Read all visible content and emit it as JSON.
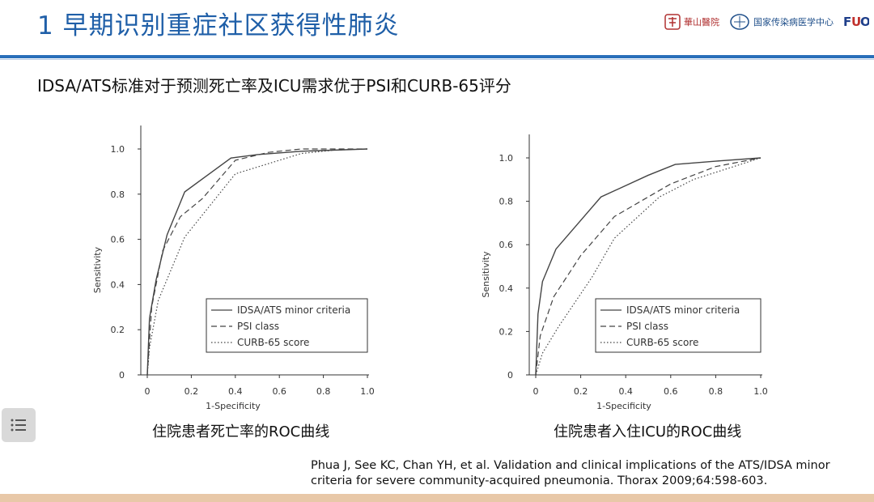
{
  "header": {
    "title": "1 早期识别重症社区获得性肺炎",
    "logos": [
      {
        "name": "huashan-hospital-logo",
        "text": "華山醫院"
      },
      {
        "name": "national-center-logo",
        "text": "国家传染病医学中心"
      },
      {
        "name": "fuo-logo",
        "text": "FUO"
      }
    ]
  },
  "subtitle": "IDSA/ATS标准对于预测死亡率及ICU需求优于PSI和CURB-65评分",
  "colors": {
    "title": "#1f5fa8",
    "rule": "#2a6fba",
    "line": "#444444"
  },
  "chart_data": [
    {
      "type": "line",
      "caption": "住院患者死亡率的ROC曲线",
      "xlabel": "1-Specificity",
      "ylabel": "Sensitivity",
      "xlim": [
        0,
        1
      ],
      "ylim": [
        0,
        1.1
      ],
      "xticks": [
        "0",
        "0.2",
        "0.4",
        "0.6",
        "0.8",
        "1.0"
      ],
      "yticks": [
        "0",
        "0.2",
        "0.4",
        "0.6",
        "0.8",
        "1.0"
      ],
      "legend_position": "bottom-right",
      "series": [
        {
          "name": "IDSA/ATS minor criteria",
          "style": "solid",
          "x": [
            0,
            0.01,
            0.04,
            0.09,
            0.17,
            0.38,
            0.5,
            0.7,
            1.0
          ],
          "y": [
            0,
            0.25,
            0.42,
            0.62,
            0.81,
            0.96,
            0.975,
            0.99,
            1.0
          ]
        },
        {
          "name": "PSI class",
          "style": "dashed",
          "x": [
            0,
            0.02,
            0.07,
            0.15,
            0.25,
            0.4,
            0.55,
            0.7,
            1.0
          ],
          "y": [
            0,
            0.3,
            0.55,
            0.7,
            0.78,
            0.95,
            0.985,
            1.0,
            1.0
          ]
        },
        {
          "name": "CURB-65 score",
          "style": "dotted",
          "x": [
            0,
            0.01,
            0.05,
            0.17,
            0.4,
            0.7,
            0.85,
            1.0
          ],
          "y": [
            0,
            0.12,
            0.33,
            0.61,
            0.89,
            0.98,
            0.995,
            1.0
          ]
        }
      ]
    },
    {
      "type": "line",
      "caption": "住院患者入住ICU的ROC曲线",
      "xlabel": "1-Specificity",
      "ylabel": "Sensitivity",
      "xlim": [
        0,
        1
      ],
      "ylim": [
        0,
        1.1
      ],
      "xticks": [
        "0",
        "0.2",
        "0.4",
        "0.6",
        "0.8",
        "1.0"
      ],
      "yticks": [
        "0",
        "0.2",
        "0.4",
        "0.6",
        "0.8",
        "1.0"
      ],
      "legend_position": "bottom-right",
      "series": [
        {
          "name": "IDSA/ATS minor criteria",
          "style": "solid",
          "x": [
            0,
            0.01,
            0.03,
            0.09,
            0.29,
            0.5,
            0.62,
            0.8,
            1.0
          ],
          "y": [
            0,
            0.28,
            0.43,
            0.58,
            0.82,
            0.92,
            0.97,
            0.985,
            1.0
          ]
        },
        {
          "name": "PSI class",
          "style": "dashed",
          "x": [
            0,
            0.02,
            0.08,
            0.2,
            0.35,
            0.6,
            0.8,
            1.0
          ],
          "y": [
            0,
            0.18,
            0.36,
            0.55,
            0.73,
            0.88,
            0.96,
            1.0
          ]
        },
        {
          "name": "CURB-65 score",
          "style": "dotted",
          "x": [
            0,
            0.03,
            0.1,
            0.25,
            0.35,
            0.55,
            0.7,
            0.85,
            1.0
          ],
          "y": [
            0,
            0.1,
            0.22,
            0.45,
            0.63,
            0.82,
            0.9,
            0.95,
            1.0
          ]
        }
      ]
    }
  ],
  "citation": "Phua J, See KC, Chan YH, et al. Validation and clinical implications of the ATS/IDSA minor criteria for severe community-acquired pneumonia. Thorax 2009;64:598-603."
}
